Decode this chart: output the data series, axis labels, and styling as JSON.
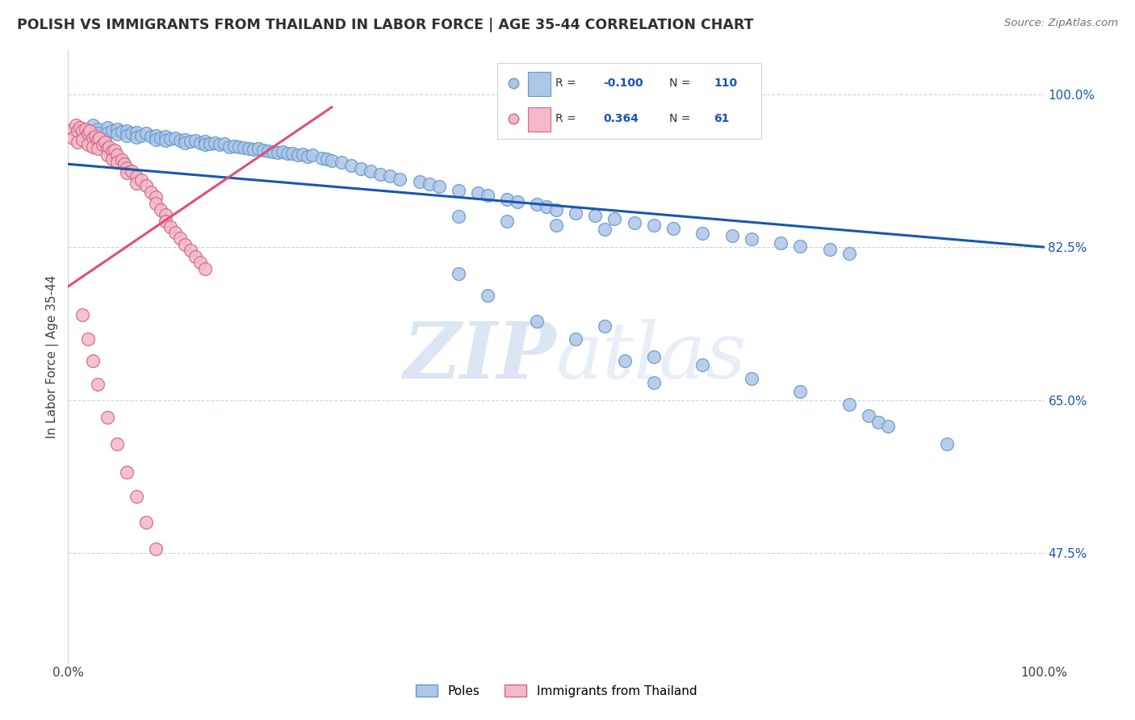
{
  "title": "POLISH VS IMMIGRANTS FROM THAILAND IN LABOR FORCE | AGE 35-44 CORRELATION CHART",
  "source": "Source: ZipAtlas.com",
  "ylabel": "In Labor Force | Age 35-44",
  "right_ytick_vals": [
    1.0,
    0.825,
    0.65,
    0.475
  ],
  "right_ytick_labels": [
    "100.0%",
    "82.5%",
    "65.0%",
    "47.5%"
  ],
  "xmin": 0.0,
  "xmax": 1.0,
  "ymin": 0.35,
  "ymax": 1.05,
  "blue_color": "#aec6e8",
  "blue_edge": "#6699cc",
  "pink_color": "#f4b8c8",
  "pink_edge": "#d06880",
  "trendline_blue": "#1a56b0",
  "trendline_pink": "#e05070",
  "background": "#ffffff",
  "grid_color": "#c8d4e4",
  "watermark_color": "#ccdaee",
  "watermark_text": "ZIPatlas",
  "blue_trend_x": [
    0.0,
    1.0
  ],
  "blue_trend_y": [
    0.92,
    0.825
  ],
  "pink_trend_x": [
    0.0,
    0.27
  ],
  "pink_trend_y": [
    0.78,
    0.985
  ],
  "poles_x": [
    0.015,
    0.02,
    0.025,
    0.03,
    0.03,
    0.04,
    0.04,
    0.045,
    0.05,
    0.05,
    0.055,
    0.06,
    0.06,
    0.065,
    0.07,
    0.07,
    0.075,
    0.08,
    0.085,
    0.09,
    0.09,
    0.095,
    0.1,
    0.1,
    0.105,
    0.11,
    0.115,
    0.12,
    0.12,
    0.125,
    0.13,
    0.135,
    0.14,
    0.14,
    0.145,
    0.15,
    0.155,
    0.16,
    0.165,
    0.17,
    0.175,
    0.18,
    0.185,
    0.19,
    0.195,
    0.2,
    0.205,
    0.21,
    0.215,
    0.22,
    0.225,
    0.23,
    0.235,
    0.24,
    0.245,
    0.25,
    0.26,
    0.265,
    0.27,
    0.28,
    0.29,
    0.3,
    0.31,
    0.32,
    0.33,
    0.34,
    0.36,
    0.37,
    0.38,
    0.4,
    0.42,
    0.43,
    0.45,
    0.46,
    0.48,
    0.49,
    0.5,
    0.52,
    0.54,
    0.56,
    0.58,
    0.6,
    0.62,
    0.65,
    0.68,
    0.7,
    0.73,
    0.75,
    0.78,
    0.8,
    0.55,
    0.6,
    0.65,
    0.7,
    0.75,
    0.8,
    0.82,
    0.83,
    0.84,
    0.9,
    0.4,
    0.43,
    0.48,
    0.52,
    0.57,
    0.6,
    0.4,
    0.45,
    0.5,
    0.55
  ],
  "poles_y": [
    0.96,
    0.958,
    0.965,
    0.96,
    0.955,
    0.962,
    0.955,
    0.958,
    0.96,
    0.954,
    0.957,
    0.958,
    0.953,
    0.955,
    0.956,
    0.951,
    0.953,
    0.955,
    0.952,
    0.953,
    0.948,
    0.95,
    0.952,
    0.947,
    0.949,
    0.95,
    0.947,
    0.948,
    0.944,
    0.946,
    0.947,
    0.944,
    0.946,
    0.942,
    0.943,
    0.944,
    0.942,
    0.943,
    0.94,
    0.941,
    0.94,
    0.939,
    0.938,
    0.937,
    0.938,
    0.936,
    0.935,
    0.934,
    0.933,
    0.934,
    0.932,
    0.932,
    0.93,
    0.931,
    0.929,
    0.93,
    0.927,
    0.926,
    0.924,
    0.922,
    0.918,
    0.915,
    0.912,
    0.908,
    0.906,
    0.903,
    0.9,
    0.897,
    0.894,
    0.89,
    0.887,
    0.884,
    0.88,
    0.877,
    0.874,
    0.871,
    0.868,
    0.864,
    0.861,
    0.857,
    0.853,
    0.85,
    0.846,
    0.841,
    0.838,
    0.834,
    0.83,
    0.826,
    0.822,
    0.818,
    0.735,
    0.7,
    0.69,
    0.675,
    0.66,
    0.645,
    0.632,
    0.625,
    0.62,
    0.6,
    0.795,
    0.77,
    0.74,
    0.72,
    0.695,
    0.67,
    0.86,
    0.855,
    0.85,
    0.845
  ],
  "thai_x": [
    0.005,
    0.005,
    0.008,
    0.01,
    0.01,
    0.012,
    0.015,
    0.015,
    0.018,
    0.02,
    0.02,
    0.022,
    0.025,
    0.025,
    0.028,
    0.03,
    0.03,
    0.032,
    0.035,
    0.038,
    0.04,
    0.04,
    0.042,
    0.045,
    0.045,
    0.048,
    0.05,
    0.05,
    0.055,
    0.058,
    0.06,
    0.06,
    0.065,
    0.07,
    0.07,
    0.075,
    0.08,
    0.085,
    0.09,
    0.09,
    0.095,
    0.1,
    0.1,
    0.105,
    0.11,
    0.115,
    0.12,
    0.125,
    0.13,
    0.135,
    0.14,
    0.015,
    0.02,
    0.025,
    0.03,
    0.04,
    0.05,
    0.06,
    0.07,
    0.08,
    0.09
  ],
  "thai_y": [
    0.96,
    0.95,
    0.965,
    0.958,
    0.945,
    0.962,
    0.958,
    0.948,
    0.96,
    0.955,
    0.942,
    0.958,
    0.95,
    0.94,
    0.952,
    0.948,
    0.938,
    0.95,
    0.942,
    0.945,
    0.938,
    0.93,
    0.94,
    0.935,
    0.926,
    0.936,
    0.93,
    0.922,
    0.925,
    0.92,
    0.916,
    0.91,
    0.912,
    0.905,
    0.898,
    0.902,
    0.895,
    0.888,
    0.882,
    0.875,
    0.868,
    0.862,
    0.855,
    0.848,
    0.842,
    0.835,
    0.828,
    0.821,
    0.814,
    0.808,
    0.8,
    0.748,
    0.72,
    0.695,
    0.668,
    0.63,
    0.6,
    0.568,
    0.54,
    0.51,
    0.48
  ]
}
